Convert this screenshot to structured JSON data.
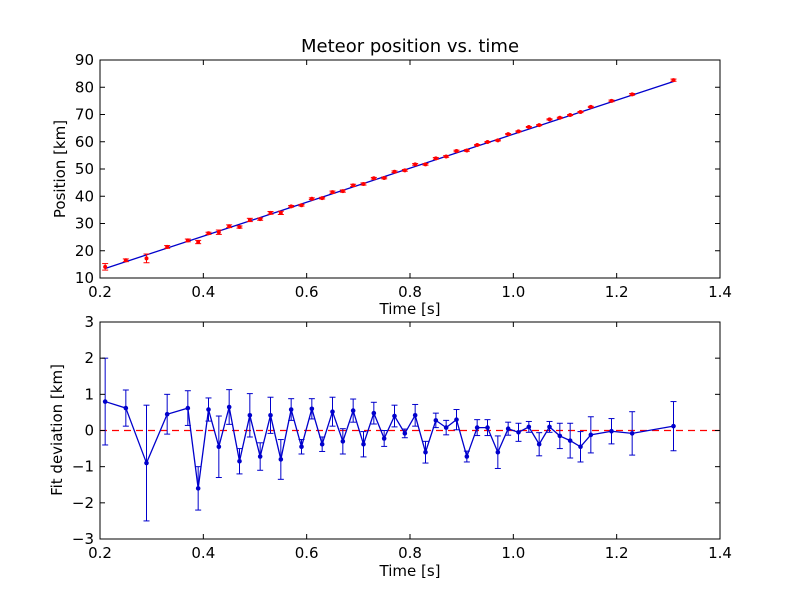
{
  "chart_data": [
    {
      "type": "scatter",
      "title": "Meteor position vs. time",
      "xlabel": "Time [s]",
      "ylabel": "Position [km]",
      "xlim": [
        0.2,
        1.4
      ],
      "ylim": [
        10,
        90
      ],
      "xticks": [
        "0.2",
        "0.4",
        "0.6",
        "0.8",
        "1.0",
        "1.2",
        "1.4"
      ],
      "yticks": [
        "10",
        "20",
        "30",
        "40",
        "50",
        "60",
        "70",
        "80",
        "90"
      ],
      "grid": false,
      "colors": {
        "points": "#ff0000",
        "fit": "#0000cc"
      },
      "fit_line": {
        "x": [
          0.21,
          1.31
        ],
        "y": [
          13.5,
          82.1
        ]
      },
      "series": [
        {
          "x": [
            0.21,
            0.25,
            0.29,
            0.33,
            0.37,
            0.39,
            0.41,
            0.43,
            0.45,
            0.47,
            0.49,
            0.51,
            0.53,
            0.55,
            0.57,
            0.59,
            0.61,
            0.63,
            0.65,
            0.67,
            0.69,
            0.71,
            0.73,
            0.75,
            0.77,
            0.79,
            0.81,
            0.83,
            0.85,
            0.87,
            0.89,
            0.91,
            0.93,
            0.95,
            0.97,
            0.99,
            1.01,
            1.03,
            1.05,
            1.07,
            1.09,
            1.11,
            1.13,
            1.15,
            1.19,
            1.23,
            1.31
          ],
          "y": [
            14.1,
            16.5,
            17.2,
            21.4,
            23.8,
            23.2,
            26.4,
            26.8,
            29.0,
            28.7,
            31.3,
            31.6,
            33.9,
            33.9,
            36.3,
            36.7,
            39.1,
            39.3,
            41.5,
            41.9,
            44.0,
            44.5,
            46.6,
            46.7,
            49.0,
            49.5,
            51.7,
            51.7,
            53.9,
            54.6,
            56.6,
            56.8,
            58.8,
            59.9,
            60.5,
            62.8,
            63.8,
            65.4,
            66.1,
            68.2,
            68.8,
            69.8,
            70.9,
            72.8,
            75.0,
            77.4,
            82.6
          ],
          "err": [
            1.2,
            0.5,
            1.6,
            0.5,
            0.5,
            0.6,
            0.4,
            0.8,
            0.5,
            0.4,
            0.6,
            0.4,
            0.5,
            0.6,
            0.3,
            0.3,
            0.3,
            0.3,
            0.4,
            0.4,
            0.4,
            0.4,
            0.3,
            0.3,
            0.3,
            0.3,
            0.3,
            0.3,
            0.3,
            0.3,
            0.3,
            0.3,
            0.2,
            0.2,
            0.2,
            0.2,
            0.2,
            0.2,
            0.2,
            0.2,
            0.2,
            0.2,
            0.2,
            0.2,
            0.3,
            0.3,
            0.4
          ]
        }
      ]
    },
    {
      "type": "line",
      "title": "",
      "xlabel": "Time [s]",
      "ylabel": "Fit deviation [km]",
      "xlim": [
        0.2,
        1.4
      ],
      "ylim": [
        -3,
        3
      ],
      "xticks": [
        "0.2",
        "0.4",
        "0.6",
        "0.8",
        "1.0",
        "1.2",
        "1.4"
      ],
      "yticks": [
        "−3",
        "−2",
        "−1",
        "0",
        "1",
        "2",
        "3"
      ],
      "grid": false,
      "reference_line": {
        "y": 0,
        "color": "#ff0000",
        "style": "dashed"
      },
      "colors": {
        "series": "#0000cc"
      },
      "series": [
        {
          "x": [
            0.21,
            0.25,
            0.29,
            0.33,
            0.37,
            0.39,
            0.41,
            0.43,
            0.45,
            0.47,
            0.49,
            0.51,
            0.53,
            0.55,
            0.57,
            0.59,
            0.61,
            0.63,
            0.65,
            0.67,
            0.69,
            0.71,
            0.73,
            0.75,
            0.77,
            0.79,
            0.81,
            0.83,
            0.85,
            0.87,
            0.89,
            0.91,
            0.93,
            0.95,
            0.97,
            0.99,
            1.01,
            1.03,
            1.05,
            1.07,
            1.09,
            1.11,
            1.13,
            1.15,
            1.19,
            1.23,
            1.31
          ],
          "y": [
            0.8,
            0.62,
            -0.9,
            0.45,
            0.62,
            -1.6,
            0.58,
            -0.45,
            0.65,
            -0.85,
            0.42,
            -0.72,
            0.42,
            -0.8,
            0.58,
            -0.45,
            0.6,
            -0.38,
            0.52,
            -0.3,
            0.55,
            -0.38,
            0.48,
            -0.22,
            0.4,
            -0.08,
            0.42,
            -0.6,
            0.28,
            0.08,
            0.3,
            -0.72,
            0.08,
            0.08,
            -0.6,
            0.05,
            -0.05,
            0.1,
            -0.38,
            0.1,
            -0.15,
            -0.28,
            -0.45,
            -0.12,
            -0.02,
            -0.08,
            0.12
          ],
          "err": [
            1.2,
            0.5,
            1.6,
            0.55,
            0.48,
            0.6,
            0.32,
            0.85,
            0.48,
            0.35,
            0.6,
            0.38,
            0.5,
            0.55,
            0.3,
            0.2,
            0.28,
            0.2,
            0.4,
            0.35,
            0.32,
            0.35,
            0.3,
            0.22,
            0.3,
            0.12,
            0.3,
            0.3,
            0.2,
            0.2,
            0.28,
            0.15,
            0.22,
            0.22,
            0.45,
            0.18,
            0.25,
            0.15,
            0.32,
            0.15,
            0.35,
            0.48,
            0.42,
            0.5,
            0.35,
            0.6,
            0.68
          ]
        }
      ]
    }
  ]
}
